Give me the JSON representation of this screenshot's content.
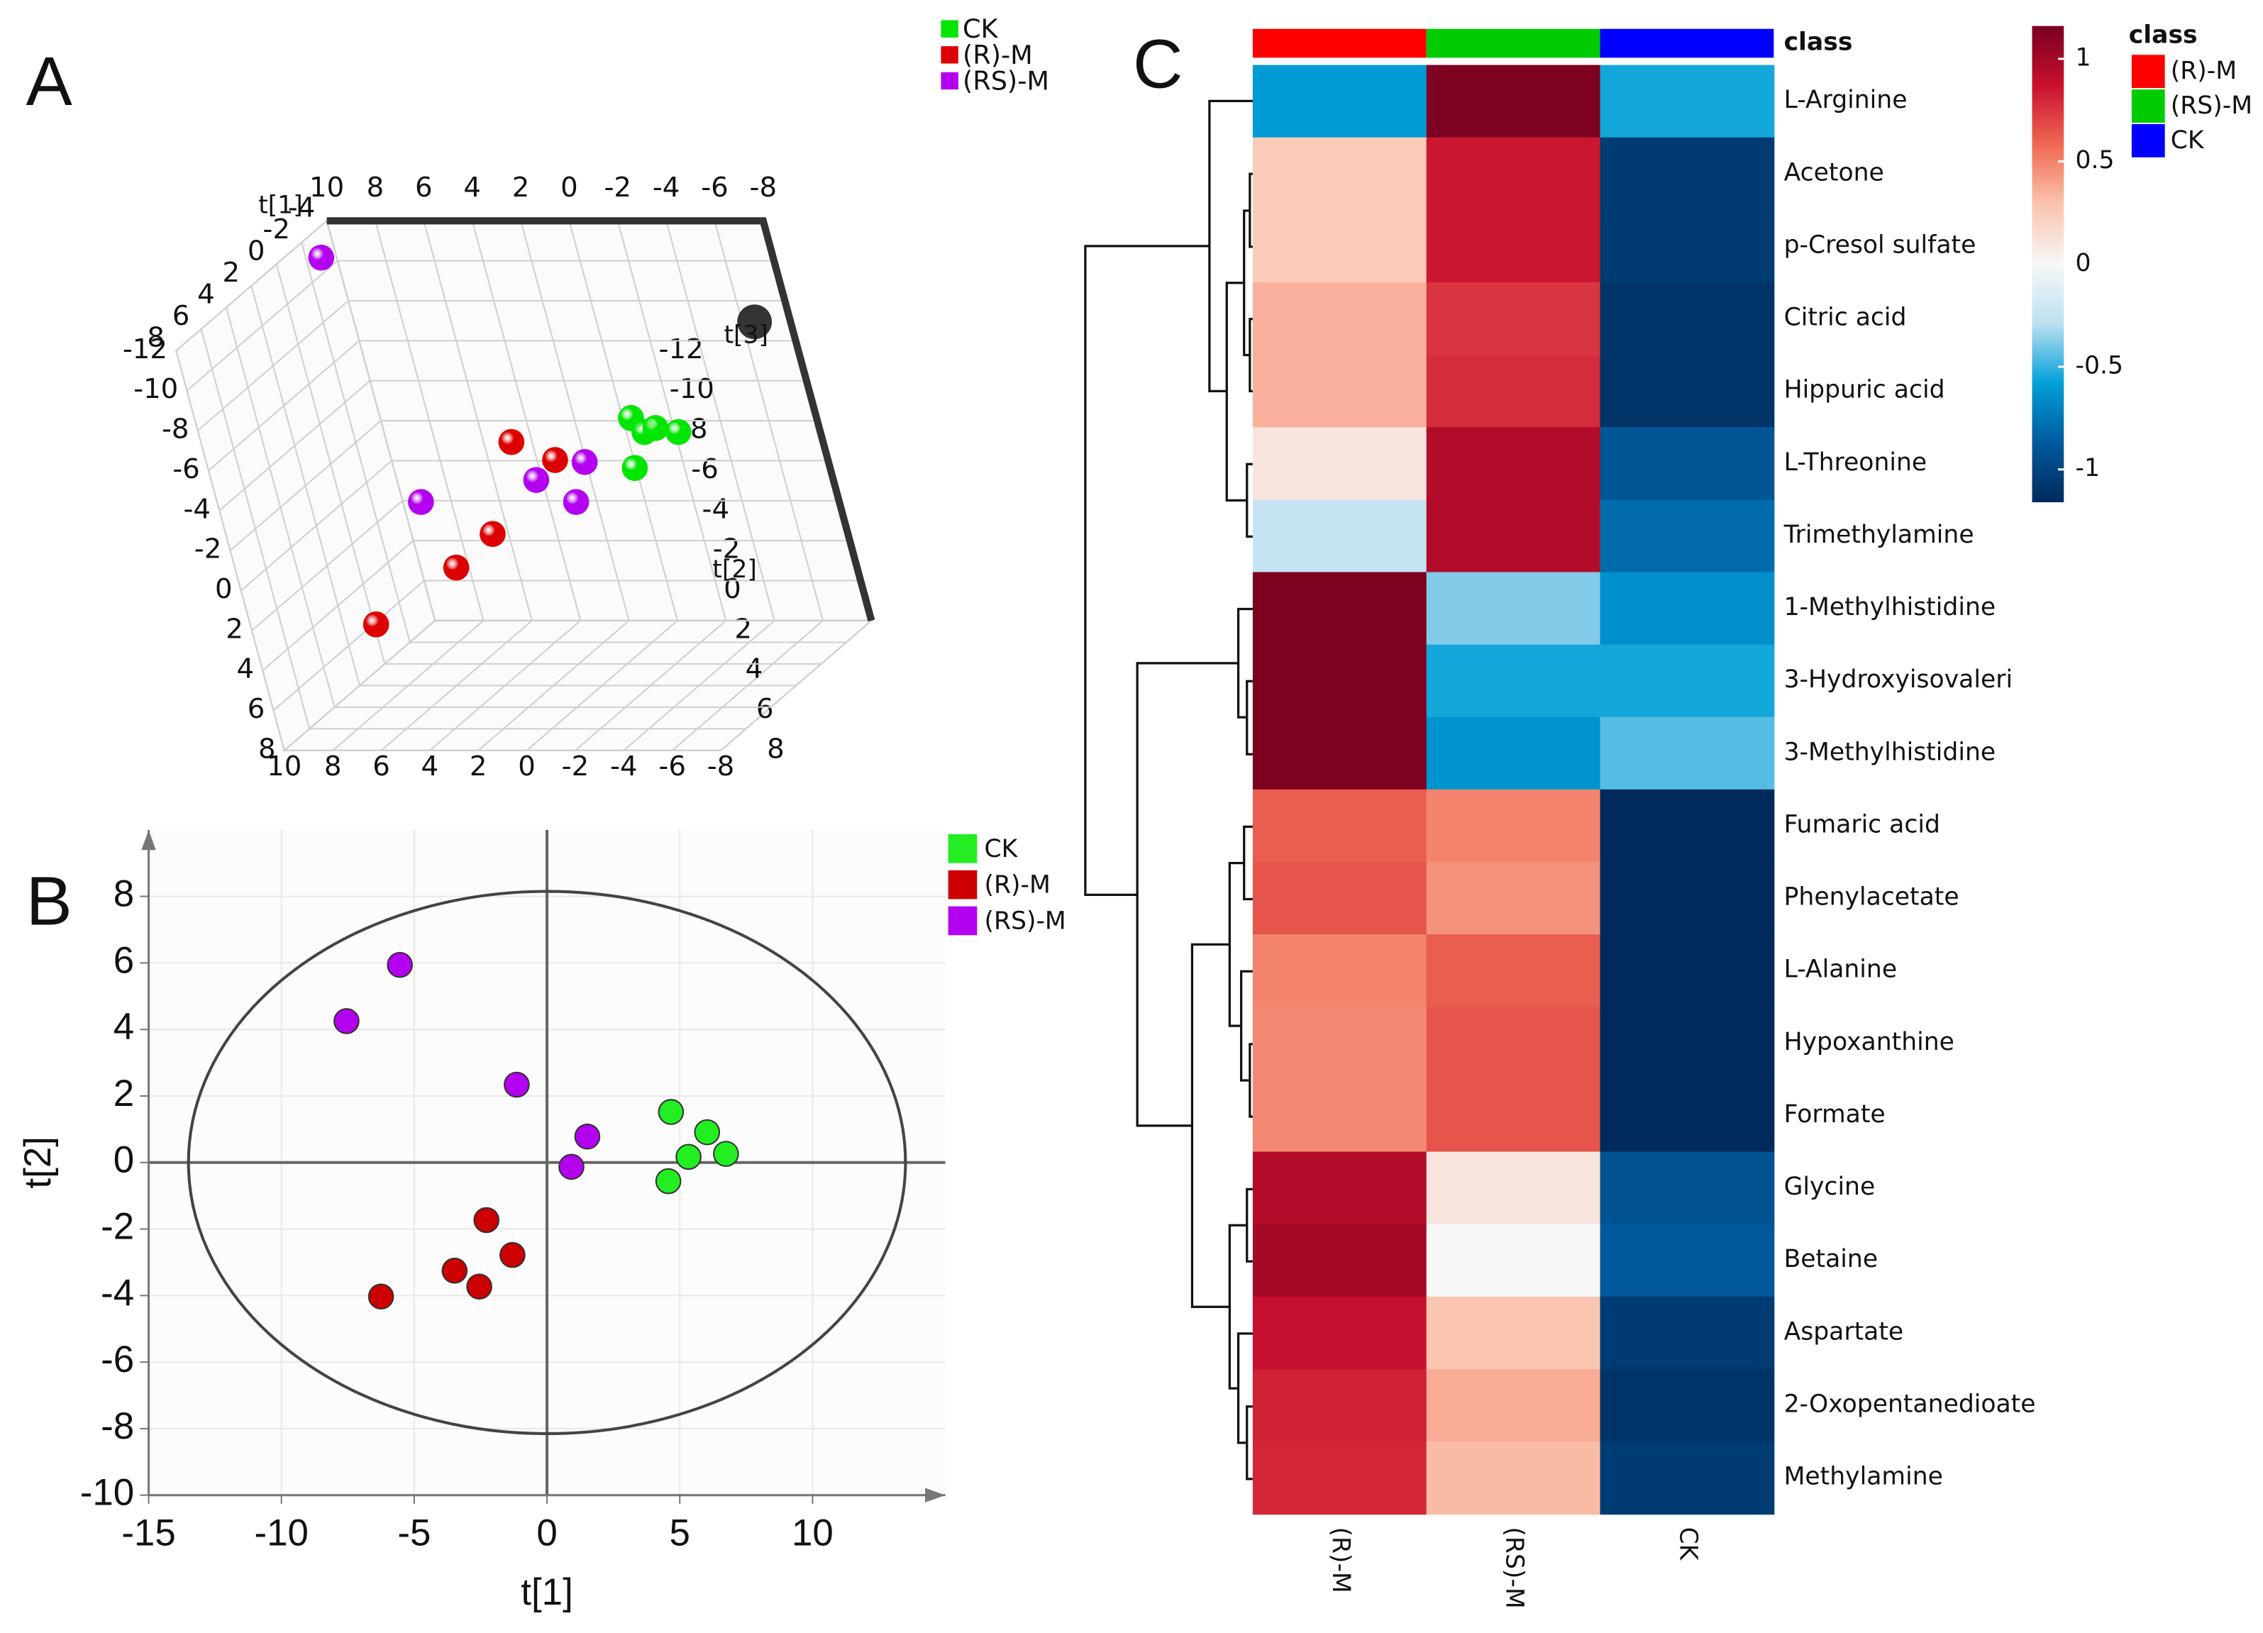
{
  "chart_data": [
    {
      "type": "scatter3d",
      "panel_label": "A",
      "x_label": "t[1]",
      "y_label": "t[2]",
      "z_label": "t[3]",
      "xlim": [
        -8,
        10
      ],
      "ylim": [
        -12,
        8
      ],
      "zlim": [
        -4,
        8
      ],
      "xticks": [
        10,
        8,
        6,
        4,
        2,
        0,
        -2,
        -4,
        -6,
        -8
      ],
      "yticks": [
        -12,
        -10,
        -8,
        -6,
        -4,
        -2,
        0,
        2,
        4,
        6,
        8
      ],
      "zticks": [
        8,
        6,
        4,
        2,
        0,
        -2,
        -4
      ],
      "series": [
        {
          "name": "CK",
          "color": "#00e600",
          "x": [
            -2.9,
            -3.3,
            -3.8,
            -4.7,
            -2.5
          ],
          "y": [
            -4.3,
            -3.6,
            -3.8,
            -3.6,
            -1.8
          ],
          "z": [
            0,
            0,
            0,
            0,
            0
          ]
        },
        {
          "name": "(R)-M",
          "color": "#dd0000",
          "x": [
            2.3,
            0.7,
            4.1,
            4.7,
            8.0
          ],
          "y": [
            -3.1,
            -2.2,
            1.5,
            2.1,
            4.4
          ],
          "z": [
            0,
            0,
            0,
            2,
            3
          ]
        },
        {
          "name": "(RS)-M",
          "color": "#b400f0",
          "x": [
            10,
            6.7,
            1.7,
            -0.5,
            0.3
          ],
          "y": [
            -10.7,
            -0.1,
            -1.2,
            -2.1,
            -0.1
          ],
          "z": [
            -3,
            0,
            0,
            0,
            0
          ]
        }
      ]
    },
    {
      "type": "scatter",
      "panel_label": "B",
      "x_label": "t[1]",
      "y_label": "t[2]",
      "xlim": [
        -15,
        15
      ],
      "ylim": [
        -10,
        10
      ],
      "xticks": [
        -15,
        -10,
        -5,
        0,
        5,
        10
      ],
      "yticks": [
        -10,
        -8,
        -6,
        -4,
        -2,
        0,
        2,
        4,
        6,
        8
      ],
      "ellipse": [
        13.5,
        8.15
      ],
      "grid": true,
      "series": [
        {
          "name": "CK",
          "color": "#22ee22",
          "x": [
            4.67,
            6.03,
            5.33,
            6.74,
            4.57
          ],
          "y": [
            1.52,
            0.91,
            0.17,
            0.26,
            -0.56
          ]
        },
        {
          "name": "(R)-M",
          "color": "#cc0000",
          "x": [
            -2.28,
            -1.3,
            -3.48,
            -2.55,
            -6.25
          ],
          "y": [
            -1.73,
            -2.78,
            -3.25,
            -3.73,
            -4.03
          ]
        },
        {
          "name": "(RS)-M",
          "color": "#b400f0",
          "x": [
            -5.54,
            -7.55,
            -1.14,
            1.52,
            0.92
          ],
          "y": [
            5.94,
            4.25,
            2.34,
            0.78,
            -0.13
          ]
        }
      ]
    },
    {
      "type": "heatmap",
      "panel_label": "C",
      "class_label": "class",
      "legend_title": "class",
      "columns": [
        "(R)-M",
        "(RS)-M",
        "CK"
      ],
      "column_colors": [
        "#ff0000",
        "#00cc00",
        "#0000ff"
      ],
      "rows": [
        "L-Arginine",
        "Acetone",
        "p-Cresol sulfate",
        "Citric acid",
        "Hippuric acid",
        "L-Threonine",
        "Trimethylamine",
        "1-Methylhistidine",
        "3-Hydroxyisovaleri",
        "3-Methylhistidine",
        "Fumaric acid",
        "Phenylacetate",
        "L-Alanine",
        "Hypoxanthine",
        "Formate",
        "Glycine",
        "Betaine",
        "Aspartate",
        "2-Oxopentanedioate",
        "Methylamine"
      ],
      "values": [
        [
          -0.6,
          1.15,
          -0.55
        ],
        [
          0.25,
          0.85,
          -1.05
        ],
        [
          0.25,
          0.85,
          -1.05
        ],
        [
          0.35,
          0.75,
          -1.1
        ],
        [
          0.35,
          0.78,
          -1.1
        ],
        [
          0.1,
          0.95,
          -0.9
        ],
        [
          -0.25,
          0.95,
          -0.8
        ],
        [
          1.15,
          -0.38,
          -0.65
        ],
        [
          1.15,
          -0.55,
          -0.55
        ],
        [
          1.15,
          -0.63,
          -0.45
        ],
        [
          0.62,
          0.5,
          -1.16
        ],
        [
          0.65,
          0.45,
          -1.16
        ],
        [
          0.5,
          0.62,
          -1.16
        ],
        [
          0.48,
          0.65,
          -1.16
        ],
        [
          0.48,
          0.65,
          -1.16
        ],
        [
          0.95,
          0.1,
          -0.92
        ],
        [
          1.0,
          0,
          -0.88
        ],
        [
          0.88,
          0.28,
          -1.05
        ],
        [
          0.82,
          0.37,
          -1.1
        ],
        [
          0.8,
          0.32,
          -1.05
        ]
      ],
      "zlim": [
        -1.16,
        1.16
      ],
      "zticks": [
        1,
        0.5,
        0,
        -0.5,
        -1
      ],
      "colors": [
        "#002a5c",
        "#005a9c",
        "#00a0d8",
        "#bde0f0",
        "#f7f7f7",
        "#fbc4ae",
        "#f06a54",
        "#c8102e",
        "#7a0020"
      ]
    }
  ]
}
